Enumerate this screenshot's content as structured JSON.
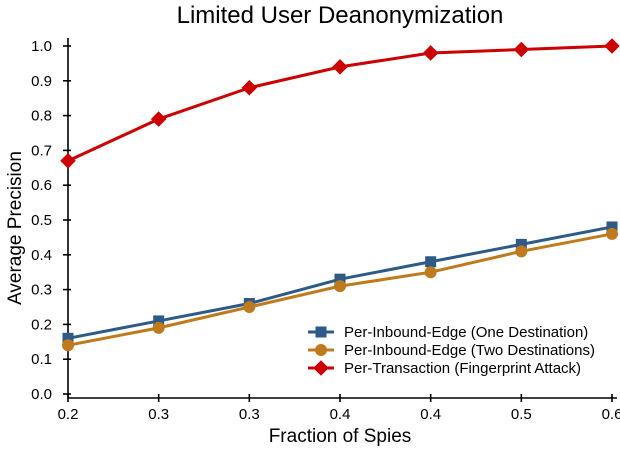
{
  "chart_data": {
    "type": "line",
    "title": "Limited User Deanonymization",
    "xlabel": "Fraction of Spies",
    "ylabel": "Average Precision",
    "x_tick_labels": [
      "0.2",
      "0.3",
      "0.3",
      "0.4",
      "0.4",
      "0.5",
      "0.6"
    ],
    "y_ticks": [
      0.0,
      0.1,
      0.2,
      0.3,
      0.4,
      0.5,
      0.6,
      0.7,
      0.8,
      0.9,
      1.0
    ],
    "y_tick_labels": [
      "0.0",
      "0.1",
      "0.2",
      "0.3",
      "0.4",
      "0.5",
      "0.6",
      "0.7",
      "0.8",
      "0.9",
      "1.0"
    ],
    "ylim": [
      0.0,
      1.0
    ],
    "grid": false,
    "legend_position": "lower right",
    "background_color": "#ffffff",
    "axis_color": "#000000",
    "series": [
      {
        "name": "Per-Inbound-Edge (One Destination)",
        "marker": "square",
        "color": "#2E5A88",
        "values": [
          0.16,
          0.21,
          0.26,
          0.33,
          0.38,
          0.43,
          0.48
        ]
      },
      {
        "name": "Per-Inbound-Edge (Two Destinations)",
        "marker": "circle",
        "color": "#C07A1E",
        "values": [
          0.14,
          0.19,
          0.25,
          0.31,
          0.35,
          0.41,
          0.46
        ]
      },
      {
        "name": "Per-Transaction (Fingerprint Attack)",
        "marker": "diamond",
        "color": "#CC0000",
        "values": [
          0.67,
          0.79,
          0.88,
          0.94,
          0.98,
          0.99,
          1.0
        ]
      }
    ]
  }
}
